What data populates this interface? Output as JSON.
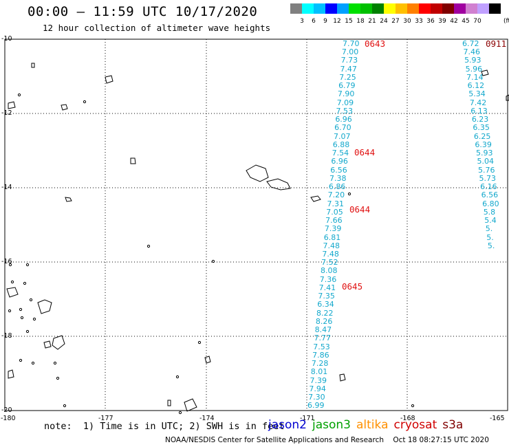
{
  "header": {
    "title": "00:00 – 11:59 UTC 10/17/2020",
    "subtitle": "12 hour collection of altimeter wave heights"
  },
  "color_scale": {
    "unit": "(ft)",
    "labels": [
      "3",
      "6",
      "9",
      "12",
      "15",
      "18",
      "21",
      "24",
      "27",
      "30",
      "33",
      "36",
      "39",
      "42",
      "45",
      "70"
    ],
    "colors": [
      "#808080",
      "#00ffff",
      "#00c0ff",
      "#0000ff",
      "#00a0ff",
      "#00e000",
      "#00c000",
      "#008000",
      "#ffff00",
      "#ffc000",
      "#ff8000",
      "#ff0000",
      "#c00000",
      "#800000",
      "#a000a0",
      "#d080d0",
      "#c0a0ff",
      "#000000"
    ]
  },
  "axes": {
    "lat_labels": [
      "-10",
      "-12",
      "-14",
      "-16",
      "-18",
      "-20"
    ],
    "lon_labels": [
      "-180",
      "-177",
      "-174",
      "-171",
      "-168",
      "-165"
    ]
  },
  "tracks": [
    {
      "values": [
        "7.70",
        "7.00",
        "7.73",
        "7.47",
        "7.25",
        "6.79",
        "7.90",
        "7.09",
        "7.53",
        "6.96",
        "6.70",
        "7.07",
        "6.88",
        "7.54",
        "6.96",
        "6.56",
        "7.38",
        "6.86",
        "7.20",
        "7.31",
        "7.05",
        "7.66",
        "7.39",
        "6.81",
        "7.48",
        "7.48",
        "7.52",
        "8.08",
        "7.36",
        "7.41",
        "7.35",
        "6.34",
        "8.22",
        "8.26",
        "8.47",
        "7.77",
        "7.53",
        "7.86",
        "7.28",
        "8.01",
        "7.39",
        "7.94",
        "7.30",
        "6.99"
      ],
      "times": [
        "0643",
        "0644",
        "0644",
        "0645"
      ]
    },
    {
      "values": [
        "6.72",
        "7.46",
        "5.93",
        "5.96",
        "7.14",
        "6.12",
        "5.34",
        "7.42",
        "6.13",
        "6.23",
        "6.35",
        "6.25",
        "6.39",
        "5.93",
        "5.04",
        "5.76",
        "5.73",
        "6.16",
        "6.56",
        "6.80",
        "5.8",
        "5.4",
        "5.",
        "5.",
        "5."
      ],
      "times": [
        "0911"
      ]
    }
  ],
  "footer": {
    "note": "note:  1) Time is in UTC; 2) SWH is in feet",
    "satellites": [
      {
        "name": "jason2",
        "color": "#0000d0"
      },
      {
        "name": "jason3",
        "color": "#00a000"
      },
      {
        "name": "altika",
        "color": "#ff9000"
      },
      {
        "name": "cryosat",
        "color": "#d00000"
      },
      {
        "name": "s3a",
        "color": "#800000"
      }
    ],
    "credit": "NOAA/NESDIS Center for Satellite Applications and Research    Oct 18 08:27:15 UTC 2020"
  }
}
